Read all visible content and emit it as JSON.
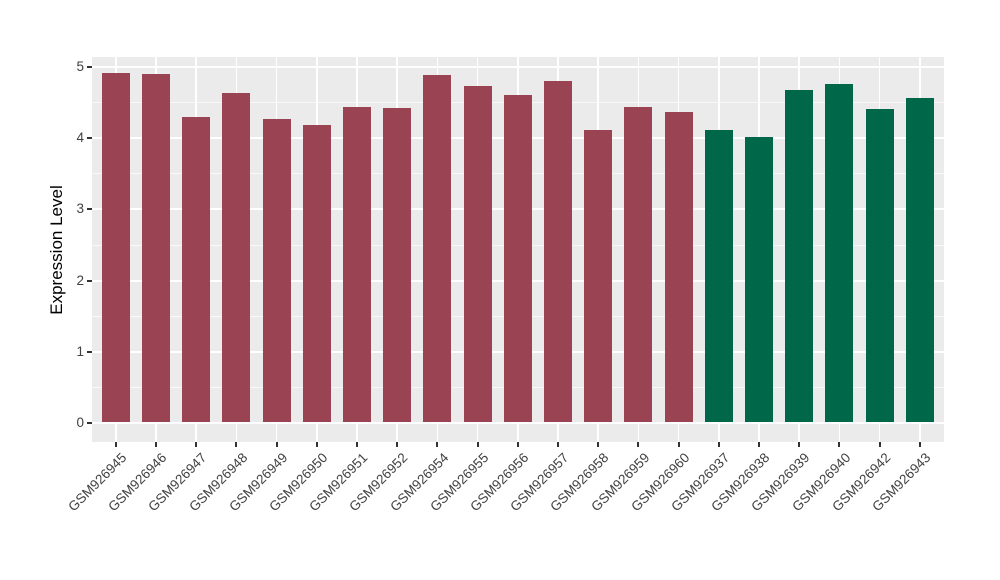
{
  "figure": {
    "title": "",
    "background_color": "#FFFFFF",
    "panel_color": "#EBEBEB",
    "gridline_color": "#FFFFFF",
    "axis_text_color": "#404040"
  },
  "chart_data": {
    "type": "bar",
    "title": "",
    "xlabel": "",
    "ylabel": "Expression Level",
    "ylim": [
      0,
      5
    ],
    "yticks": [
      0,
      1,
      2,
      3,
      4,
      5
    ],
    "grid": true,
    "legend": false,
    "categories": [
      "GSM926945",
      "GSM926946",
      "GSM926947",
      "GSM926948",
      "GSM926949",
      "GSM926950",
      "GSM926951",
      "GSM926952",
      "GSM926954",
      "GSM926955",
      "GSM926956",
      "GSM926957",
      "GSM926958",
      "GSM926959",
      "GSM926960",
      "GSM926937",
      "GSM926938",
      "GSM926939",
      "GSM926940",
      "GSM926942",
      "GSM926943"
    ],
    "values": [
      4.91,
      4.9,
      4.3,
      4.63,
      4.27,
      4.19,
      4.44,
      4.43,
      4.89,
      4.73,
      4.6,
      4.8,
      4.12,
      4.44,
      4.37,
      4.12,
      4.02,
      4.67,
      4.76,
      4.41,
      4.56
    ],
    "group_index": [
      0,
      0,
      0,
      0,
      0,
      0,
      0,
      0,
      0,
      0,
      0,
      0,
      0,
      0,
      0,
      1,
      1,
      1,
      1,
      1,
      1
    ],
    "group_colors": [
      "#9A4352",
      "#006749"
    ]
  }
}
